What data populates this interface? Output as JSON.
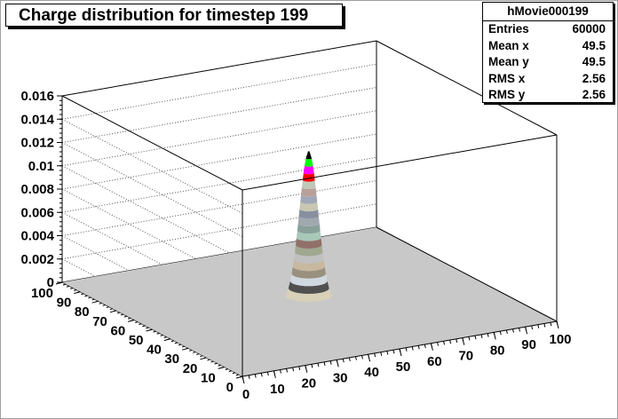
{
  "title": "Charge distribution for timestep 199",
  "stats": {
    "name": "hMovie000199",
    "rows": [
      {
        "label": "Entries",
        "value": "60000"
      },
      {
        "label": "Mean x",
        "value": "49.5"
      },
      {
        "label": "Mean y",
        "value": "49.5"
      },
      {
        "label": "RMS x",
        "value": "2.56"
      },
      {
        "label": "RMS y",
        "value": "2.56"
      }
    ]
  },
  "chart_data": {
    "type": "surface",
    "x_ticks": [
      "0",
      "10",
      "20",
      "30",
      "40",
      "50",
      "60",
      "70",
      "80",
      "90",
      "100"
    ],
    "y_ticks": [
      "0",
      "10",
      "20",
      "30",
      "40",
      "50",
      "60",
      "70",
      "80",
      "90",
      "100"
    ],
    "z_ticks": [
      "0",
      "0.002",
      "0.004",
      "0.006",
      "0.008",
      "0.01",
      "0.012",
      "0.014",
      "0.016"
    ],
    "xlim": [
      0,
      100
    ],
    "ylim": [
      0,
      100
    ],
    "zlim": [
      0,
      0.016
    ],
    "peak": {
      "x": 49.5,
      "y": 49.5,
      "z": 0.013
    },
    "gaussian_sigma": 2.56,
    "floor_color": "#c8c8c8",
    "band_colors": [
      "#c8c8c8",
      "#d8d0b8",
      "#505050",
      "#d0d8e0",
      "#9a9080",
      "#c8b8a0",
      "#c0c0c0",
      "#a0a890",
      "#907068",
      "#a8c8b8",
      "#88a098",
      "#a0a8b0",
      "#8890a0",
      "#c8c8b0",
      "#a0a8b8",
      "#b8a098",
      "#c0c8b8",
      "#ff0000",
      "#ff00ff",
      "#00ff00",
      "#000000"
    ]
  }
}
